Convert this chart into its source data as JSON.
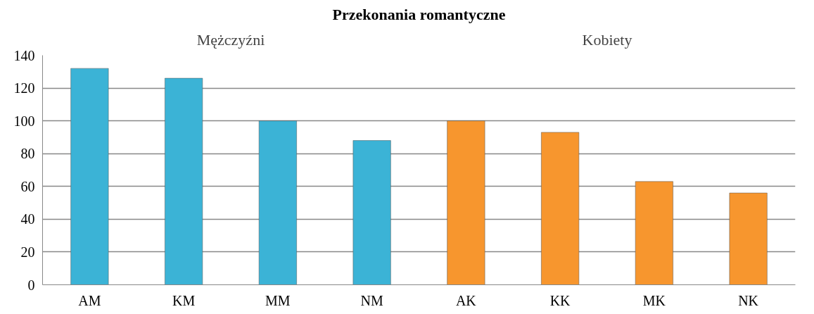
{
  "chart_data": {
    "type": "bar",
    "title": "Przekonania romantyczne",
    "categories": [
      "AM",
      "KM",
      "MM",
      "NM",
      "AK",
      "KK",
      "MK",
      "NK"
    ],
    "values": [
      132,
      126,
      100,
      88,
      100,
      93,
      63,
      56
    ],
    "colors": [
      "#3bb3d6",
      "#3bb3d6",
      "#3bb3d6",
      "#3bb3d6",
      "#f7962e",
      "#f7962e",
      "#f7962e",
      "#f7962e"
    ],
    "annotations": [
      "Mężczyźni",
      "Kobiety"
    ],
    "ylim": [
      0,
      140
    ],
    "yticks": [
      0,
      20,
      40,
      60,
      80,
      100,
      120,
      140
    ],
    "grid": "y"
  }
}
